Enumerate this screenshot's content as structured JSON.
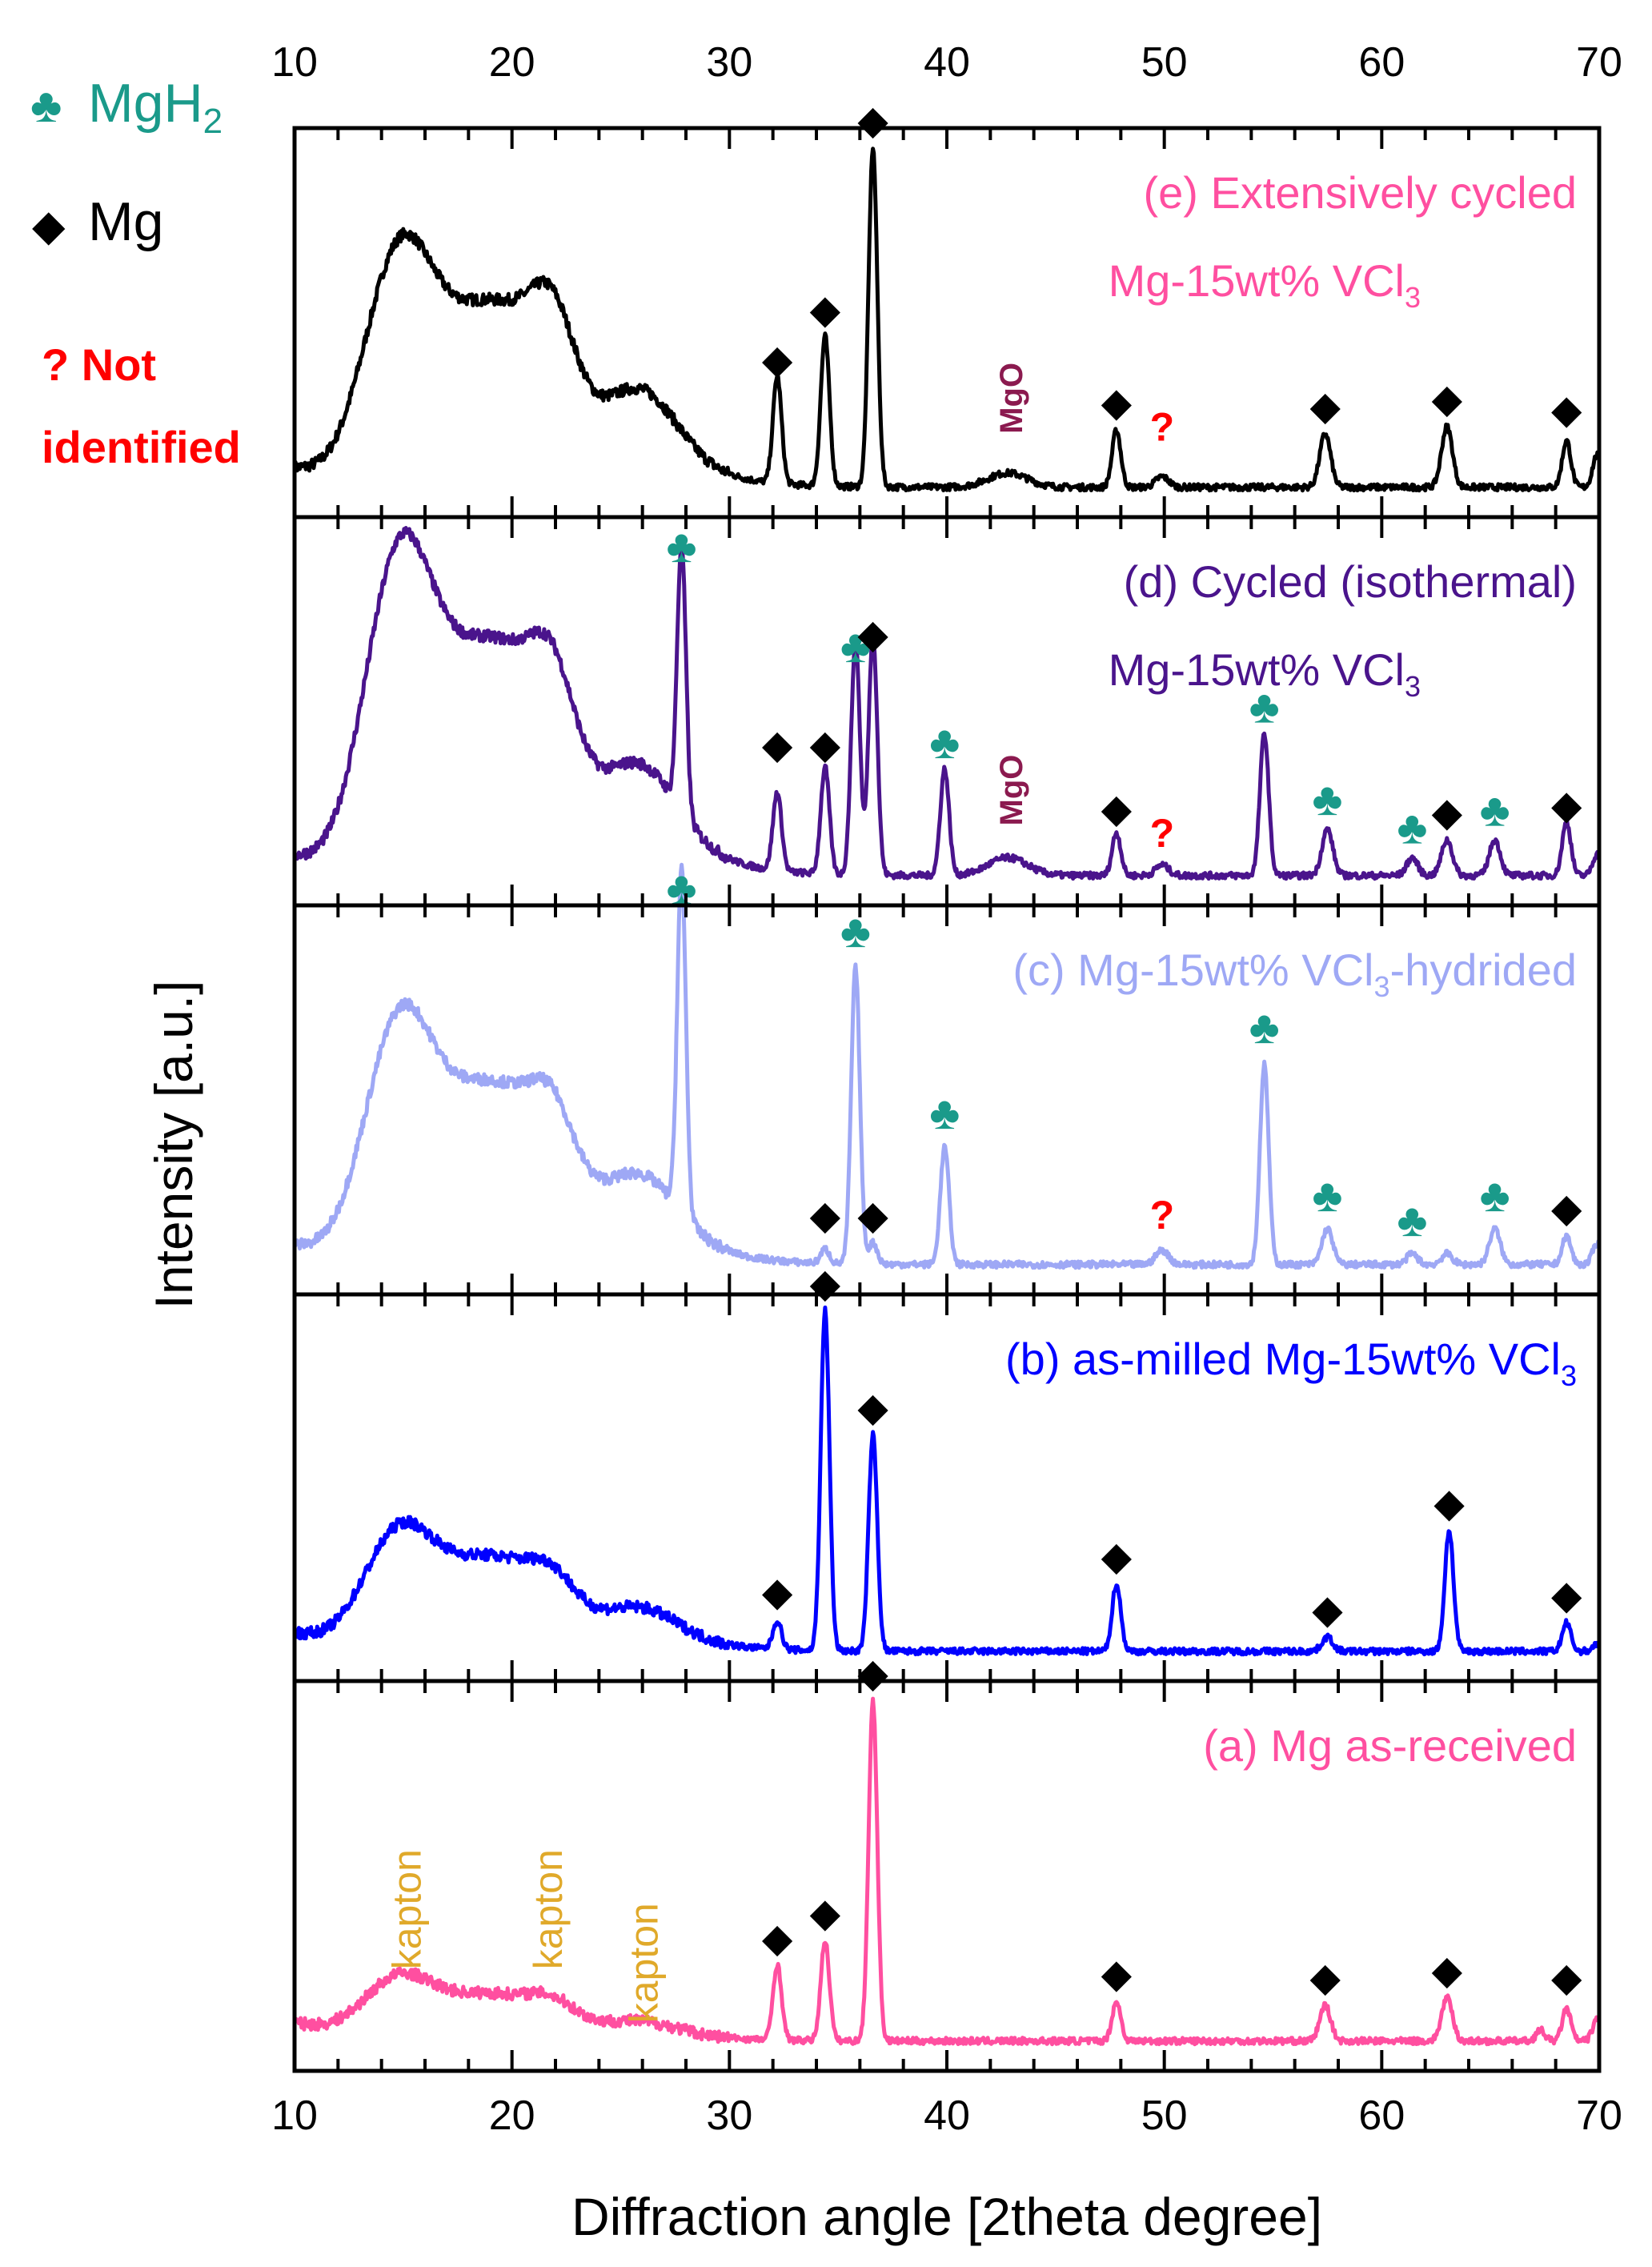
{
  "legend": {
    "mgh2": {
      "symbol": "♣",
      "label": "MgH",
      "sub": "2",
      "color": "#1a9a8a"
    },
    "mg": {
      "symbol": "◆",
      "label": "Mg",
      "color": "#000000"
    },
    "unknown": {
      "line1": "? Not",
      "line2": "identified",
      "color": "#ff0000"
    }
  },
  "chart_data": {
    "type": "line",
    "xlabel": "Diffraction angle [2theta degree]",
    "ylabel": "Intensity [a.u.]",
    "xlim": [
      10,
      70
    ],
    "xticks": [
      "10",
      "20",
      "30",
      "40",
      "50",
      "60",
      "70"
    ],
    "panels": [
      {
        "id": "e",
        "title": "(e) Extensively cycled",
        "title_line2": "Mg-15wt% VCl",
        "title_sub": "3",
        "title_color": "#ff4fa0",
        "color": "#000000",
        "base": 0.05,
        "shoulder": [
          0.55,
          0.44,
          0.41,
          0.4,
          0.3
        ],
        "peaks": [
          [
            32.2,
            0.3,
            0.2
          ],
          [
            34.4,
            0.42,
            0.2
          ],
          [
            36.6,
            0.95,
            0.2
          ],
          [
            42.8,
            0.04,
            0.9
          ],
          [
            47.8,
            0.16,
            0.2
          ],
          [
            49.9,
            0.03,
            0.3
          ],
          [
            57.4,
            0.15,
            0.25
          ],
          [
            63.0,
            0.17,
            0.25
          ],
          [
            68.5,
            0.13,
            0.2
          ],
          [
            69.9,
            0.09,
            0.2
          ]
        ],
        "markers": [
          {
            "x": 32.2,
            "y": 0.37,
            "sym": "mg"
          },
          {
            "x": 34.4,
            "y": 0.51,
            "sym": "mg"
          },
          {
            "x": 36.6,
            "y": 1.04,
            "sym": "mg"
          },
          {
            "x": 47.8,
            "y": 0.25,
            "sym": "mg"
          },
          {
            "x": 57.4,
            "y": 0.24,
            "sym": "mg"
          },
          {
            "x": 63.0,
            "y": 0.26,
            "sym": "mg"
          },
          {
            "x": 68.5,
            "y": 0.23,
            "sym": "mg"
          },
          {
            "x": 49.9,
            "y": 0.18,
            "sym": "unk"
          }
        ],
        "mgo": {
          "text": "MgO",
          "x": 42.8,
          "y": 0.2
        }
      },
      {
        "id": "d",
        "title": "(d) Cycled (isothermal)",
        "title_line2": "Mg-15wt% VCl",
        "title_sub": "3",
        "title_color": "#4a148c",
        "color": "#4a148c",
        "base": 0.05,
        "shoulder": [
          0.78,
          0.57,
          0.51,
          0.42,
          0.31
        ],
        "peaks": [
          [
            27.8,
            0.75,
            0.2
          ],
          [
            32.2,
            0.22,
            0.2
          ],
          [
            34.4,
            0.3,
            0.2
          ],
          [
            35.8,
            0.66,
            0.2
          ],
          [
            36.6,
            0.68,
            0.2
          ],
          [
            39.9,
            0.3,
            0.2
          ],
          [
            42.8,
            0.05,
            0.9
          ],
          [
            47.8,
            0.12,
            0.2
          ],
          [
            49.9,
            0.03,
            0.3
          ],
          [
            54.6,
            0.4,
            0.2
          ],
          [
            57.5,
            0.13,
            0.25
          ],
          [
            61.4,
            0.05,
            0.25
          ],
          [
            63.0,
            0.1,
            0.25
          ],
          [
            65.2,
            0.1,
            0.25
          ],
          [
            68.5,
            0.15,
            0.2
          ],
          [
            69.9,
            0.06,
            0.2
          ]
        ],
        "markers": [
          {
            "x": 27.8,
            "y": 0.93,
            "sym": "mgh2"
          },
          {
            "x": 32.2,
            "y": 0.38,
            "sym": "mg"
          },
          {
            "x": 34.4,
            "y": 0.38,
            "sym": "mg"
          },
          {
            "x": 35.8,
            "y": 0.65,
            "sym": "mgh2"
          },
          {
            "x": 36.6,
            "y": 0.69,
            "sym": "mg"
          },
          {
            "x": 39.9,
            "y": 0.38,
            "sym": "mgh2"
          },
          {
            "x": 47.8,
            "y": 0.2,
            "sym": "mg"
          },
          {
            "x": 54.6,
            "y": 0.48,
            "sym": "mgh2"
          },
          {
            "x": 57.5,
            "y": 0.22,
            "sym": "mgh2"
          },
          {
            "x": 61.4,
            "y": 0.14,
            "sym": "mgh2"
          },
          {
            "x": 63.0,
            "y": 0.19,
            "sym": "mg"
          },
          {
            "x": 65.2,
            "y": 0.19,
            "sym": "mgh2"
          },
          {
            "x": 68.5,
            "y": 0.21,
            "sym": "mg"
          },
          {
            "x": 49.9,
            "y": 0.13,
            "sym": "unk"
          }
        ],
        "mgo": {
          "text": "MgO",
          "x": 42.8,
          "y": 0.19
        }
      },
      {
        "id": "c",
        "title": "(c) Mg-15wt% VCl",
        "title_sub": "3",
        "title_tail": "-hydrided",
        "title_color": "#9ea8f5",
        "color": "#9ea8f5",
        "base": 0.05,
        "shoulder": [
          0.58,
          0.44,
          0.39,
          0.31,
          0.26
        ],
        "peaks": [
          [
            27.8,
            0.96,
            0.2
          ],
          [
            34.4,
            0.04,
            0.2
          ],
          [
            35.8,
            0.83,
            0.2
          ],
          [
            36.6,
            0.06,
            0.2
          ],
          [
            39.9,
            0.33,
            0.2
          ],
          [
            49.9,
            0.04,
            0.3
          ],
          [
            54.6,
            0.56,
            0.2
          ],
          [
            57.5,
            0.1,
            0.25
          ],
          [
            61.4,
            0.03,
            0.25
          ],
          [
            63.0,
            0.03,
            0.25
          ],
          [
            65.2,
            0.1,
            0.25
          ],
          [
            68.5,
            0.08,
            0.2
          ],
          [
            69.9,
            0.06,
            0.2
          ]
        ],
        "markers": [
          {
            "x": 27.8,
            "y": 1.06,
            "sym": "mgh2"
          },
          {
            "x": 34.4,
            "y": 0.15,
            "sym": "mg"
          },
          {
            "x": 35.8,
            "y": 0.94,
            "sym": "mgh2"
          },
          {
            "x": 36.6,
            "y": 0.15,
            "sym": "mg"
          },
          {
            "x": 39.9,
            "y": 0.43,
            "sym": "mgh2"
          },
          {
            "x": 54.6,
            "y": 0.67,
            "sym": "mgh2"
          },
          {
            "x": 57.5,
            "y": 0.2,
            "sym": "mgh2"
          },
          {
            "x": 61.4,
            "y": 0.13,
            "sym": "mgh2"
          },
          {
            "x": 65.2,
            "y": 0.2,
            "sym": "mgh2"
          },
          {
            "x": 68.5,
            "y": 0.17,
            "sym": "mg"
          },
          {
            "x": 49.9,
            "y": 0.15,
            "sym": "unk"
          }
        ]
      },
      {
        "id": "b",
        "title": "(b) as-milled Mg-15wt% VCl",
        "title_sub": "3",
        "title_color": "#0000ff",
        "color": "#0000ff",
        "base": 0.05,
        "shoulder": [
          0.27,
          0.23,
          0.2,
          0.14,
          0.12
        ],
        "peaks": [
          [
            32.2,
            0.08,
            0.2
          ],
          [
            34.4,
            0.96,
            0.2
          ],
          [
            36.6,
            0.61,
            0.2
          ],
          [
            47.8,
            0.19,
            0.2
          ],
          [
            57.5,
            0.04,
            0.25
          ],
          [
            63.1,
            0.34,
            0.2
          ],
          [
            68.5,
            0.08,
            0.2
          ],
          [
            69.9,
            0.02,
            0.2
          ]
        ],
        "markers": [
          {
            "x": 32.2,
            "y": 0.18,
            "sym": "mg"
          },
          {
            "x": 34.4,
            "y": 1.05,
            "sym": "mg"
          },
          {
            "x": 36.6,
            "y": 0.7,
            "sym": "mg"
          },
          {
            "x": 47.8,
            "y": 0.28,
            "sym": "mg"
          },
          {
            "x": 57.5,
            "y": 0.13,
            "sym": "mg"
          },
          {
            "x": 63.1,
            "y": 0.43,
            "sym": "mg"
          },
          {
            "x": 68.5,
            "y": 0.17,
            "sym": "mg"
          }
        ]
      },
      {
        "id": "a",
        "title": "(a) Mg as-received",
        "title_color": "#ff4fa0",
        "color": "#ff4fa0",
        "base": 0.05,
        "shoulder": [
          0.14,
          0.11,
          0.1,
          0.08,
          0.05
        ],
        "peaks": [
          [
            32.2,
            0.21,
            0.2
          ],
          [
            34.4,
            0.28,
            0.2
          ],
          [
            36.6,
            0.95,
            0.2
          ],
          [
            47.8,
            0.11,
            0.2
          ],
          [
            57.4,
            0.1,
            0.25
          ],
          [
            63.0,
            0.12,
            0.25
          ],
          [
            67.3,
            0.03,
            0.2
          ],
          [
            68.5,
            0.09,
            0.2
          ],
          [
            69.9,
            0.06,
            0.2
          ]
        ],
        "markers": [
          {
            "x": 32.2,
            "y": 0.3,
            "sym": "mg"
          },
          {
            "x": 34.4,
            "y": 0.37,
            "sym": "mg"
          },
          {
            "x": 36.6,
            "y": 1.04,
            "sym": "mg"
          },
          {
            "x": 47.8,
            "y": 0.2,
            "sym": "mg"
          },
          {
            "x": 57.4,
            "y": 0.19,
            "sym": "mg"
          },
          {
            "x": 63.0,
            "y": 0.21,
            "sym": "mg"
          },
          {
            "x": 68.5,
            "y": 0.19,
            "sym": "mg"
          }
        ],
        "kapton": [
          {
            "text": "kapton",
            "x": 15.8,
            "y": 0.25
          },
          {
            "text": "kapton",
            "x": 22.3,
            "y": 0.25
          },
          {
            "text": "kapton",
            "x": 26.7,
            "y": 0.1
          }
        ]
      }
    ]
  }
}
